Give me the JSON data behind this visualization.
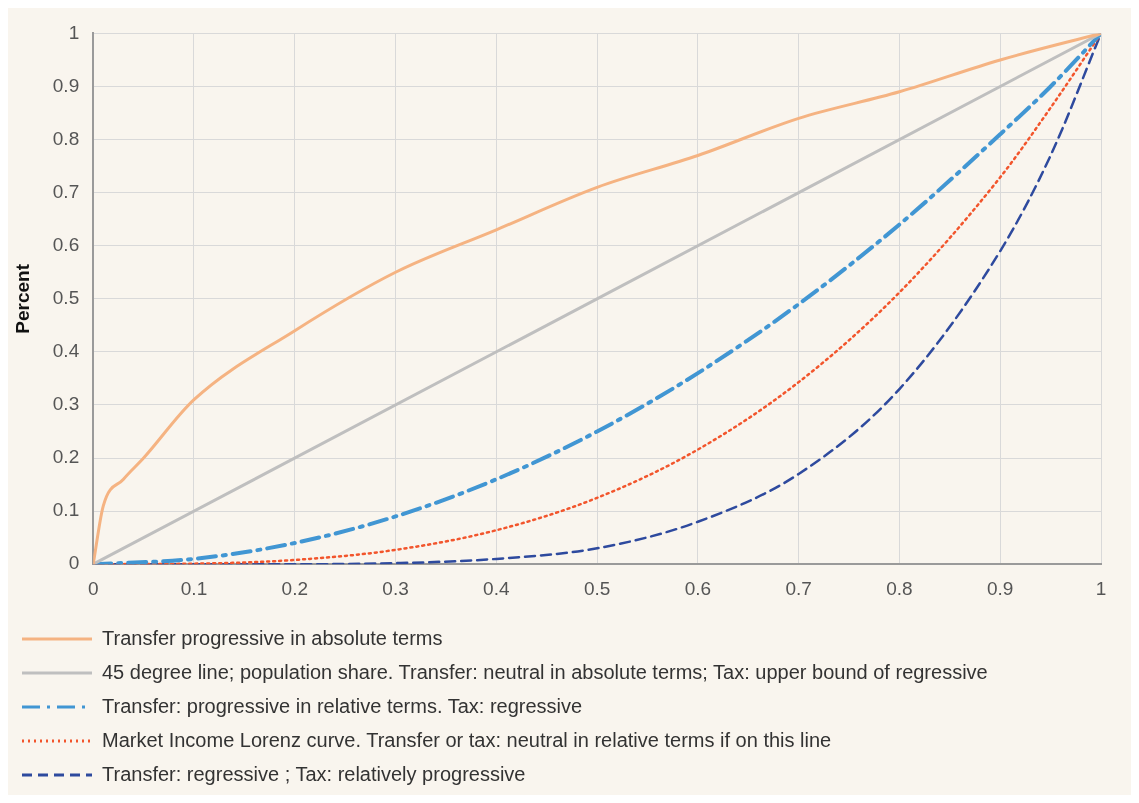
{
  "chart_data": {
    "type": "line",
    "ylabel": "Percent",
    "x": [
      0,
      0.1,
      0.2,
      0.3,
      0.4,
      0.5,
      0.6,
      0.7,
      0.8,
      0.9,
      0.95,
      1
    ],
    "series": [
      {
        "name": "Transfer progressive in absolute terms",
        "color": "#f5b382",
        "line_style": "solid",
        "x": [
          0,
          0.01,
          0.03,
          0.05,
          0.1,
          0.2,
          0.3,
          0.4,
          0.5,
          0.6,
          0.7,
          0.8,
          0.9,
          1
        ],
        "values": [
          0,
          0.11,
          0.16,
          0.2,
          0.31,
          0.44,
          0.55,
          0.63,
          0.71,
          0.77,
          0.84,
          0.89,
          0.95,
          1
        ]
      },
      {
        "name": "45 degree line; population share. Transfer: neutral in absolute terms; Tax: upper bound of regressive",
        "color": "#bfbfbf",
        "line_style": "solid",
        "x": [
          0,
          1
        ],
        "values": [
          0,
          1
        ]
      },
      {
        "name": "Transfer: progressive in relative terms. Tax: regressive",
        "color": "#4196d3",
        "line_style": "dashdot",
        "values": [
          0,
          0.01,
          0.04,
          0.09,
          0.16,
          0.25,
          0.36,
          0.49,
          0.64,
          0.81,
          0.9,
          1
        ]
      },
      {
        "name": "Market Income Lorenz curve. Transfer or tax: neutral in relative terms if on this line",
        "color": "#f2552c",
        "line_style": "dotted",
        "values": [
          0,
          0.001,
          0.008,
          0.027,
          0.064,
          0.125,
          0.216,
          0.343,
          0.512,
          0.729,
          0.86,
          1
        ]
      },
      {
        "name": "Transfer: regressive ; Tax: relatively progressive",
        "color": "#2e4a9e",
        "line_style": "dashed",
        "values": [
          0,
          0,
          0,
          0.002,
          0.01,
          0.03,
          0.08,
          0.17,
          0.33,
          0.59,
          0.77,
          1
        ]
      }
    ],
    "xlim": [
      0,
      1
    ],
    "xticks": [
      0,
      0.1,
      0.2,
      0.3,
      0.4,
      0.5,
      0.6,
      0.7,
      0.8,
      0.9,
      1
    ],
    "ylim": [
      0,
      1
    ],
    "yticks": [
      0,
      0.1,
      0.2,
      0.3,
      0.4,
      0.5,
      0.6,
      0.7,
      0.8,
      0.9,
      1
    ],
    "grid": true,
    "legend": "bottom",
    "marker": "none"
  }
}
